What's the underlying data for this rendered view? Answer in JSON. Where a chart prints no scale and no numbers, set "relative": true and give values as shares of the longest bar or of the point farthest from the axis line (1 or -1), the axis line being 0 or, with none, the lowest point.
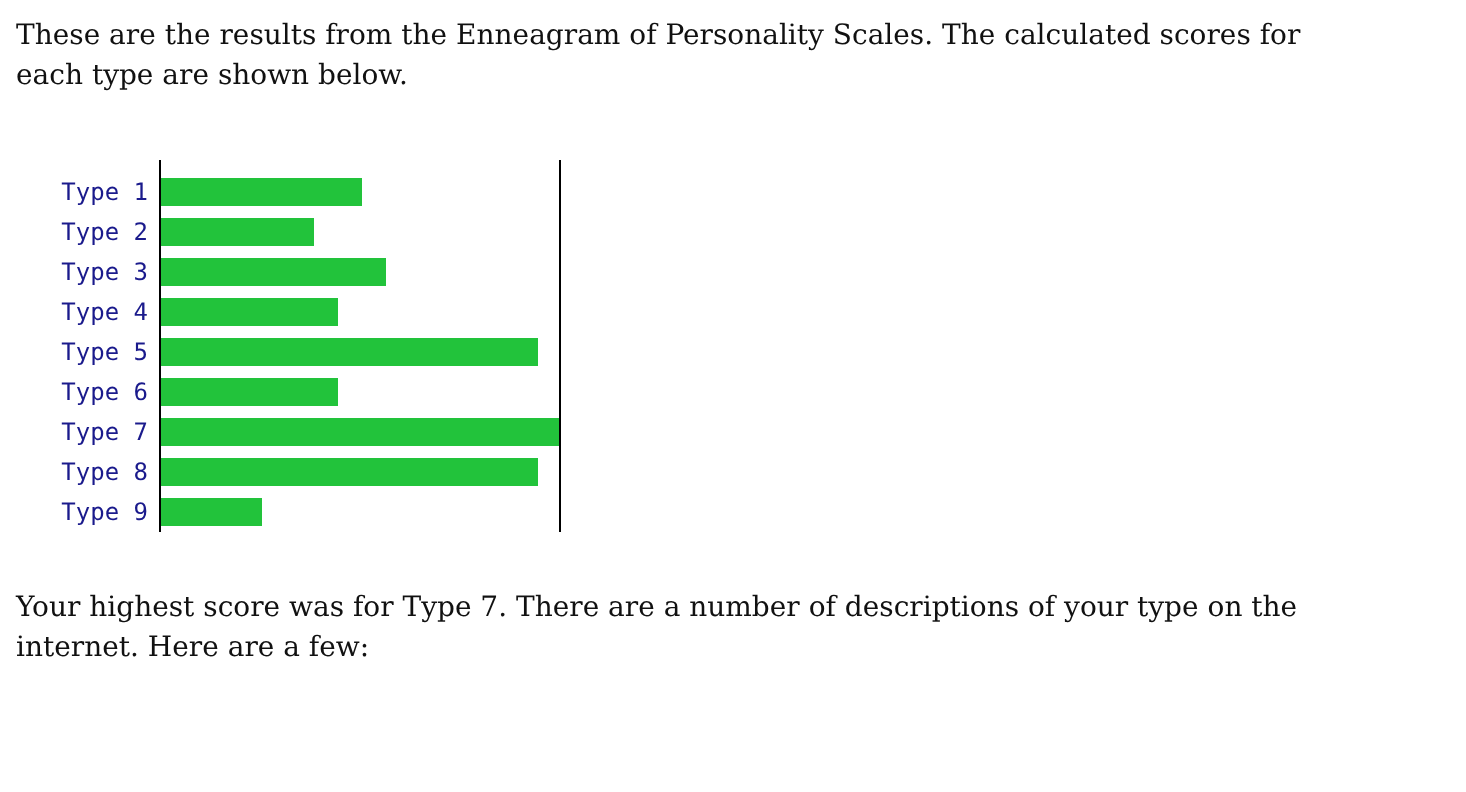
{
  "chart_data": {
    "type": "bar",
    "orientation": "horizontal",
    "relative": true,
    "title": "These are the results from the Enneagram of Personality Scales. The calculated scores for each type are shown below.",
    "categories": [
      "Type 1",
      "Type 2",
      "Type 3",
      "Type 4",
      "Type 5",
      "Type 6",
      "Type 7",
      "Type 8",
      "Type 9"
    ],
    "values": [
      0.505,
      0.385,
      0.565,
      0.445,
      0.945,
      0.445,
      1,
      0.945,
      0.255
    ],
    "color": "#22c33b",
    "annotations": [
      "Your highest score was for Type 7. There are a number of descriptions of your type on the internet. Here are a few:"
    ]
  }
}
